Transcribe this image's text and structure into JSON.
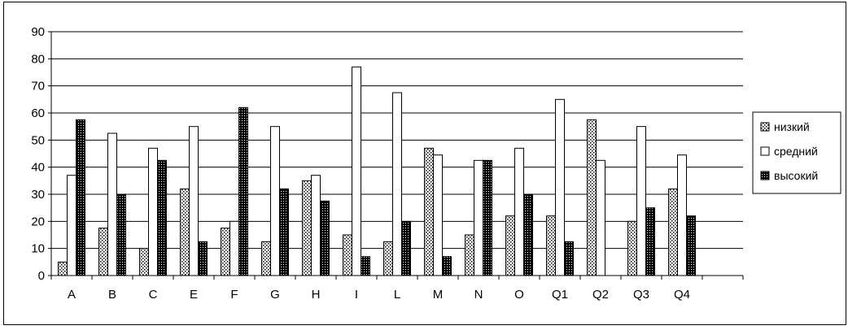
{
  "chart_data": {
    "type": "bar",
    "categories": [
      "A",
      "B",
      "C",
      "E",
      "F",
      "G",
      "H",
      "I",
      "L",
      "M",
      "N",
      "O",
      "Q1",
      "Q2",
      "Q3",
      "Q4"
    ],
    "series": [
      {
        "name": "низкий",
        "pattern": "dots",
        "values": [
          5,
          17.5,
          10,
          32,
          17.5,
          12.5,
          35,
          15,
          12.5,
          47,
          15,
          22,
          22,
          57.5,
          20,
          32
        ]
      },
      {
        "name": "средний",
        "pattern": "white",
        "values": [
          37,
          52.5,
          47,
          55,
          20,
          55,
          37,
          77,
          67.5,
          44.5,
          42.5,
          47,
          65,
          42.5,
          55,
          44.5
        ]
      },
      {
        "name": "высокий",
        "pattern": "dark",
        "values": [
          57.5,
          30,
          42.5,
          12.5,
          62,
          32,
          27.5,
          7,
          20,
          7,
          42.5,
          30,
          12.5,
          0,
          25,
          22
        ]
      }
    ],
    "title": "",
    "xlabel": "",
    "ylabel": "",
    "ylim": [
      0,
      90
    ],
    "yticks": [
      0,
      10,
      20,
      30,
      40,
      50,
      60,
      70,
      80,
      90
    ],
    "grid": true,
    "legend_position": "right",
    "colors": {
      "border": "#000000",
      "grid": "#000000",
      "bar_fill_white": "#ffffff",
      "pattern_dark": "#000000"
    }
  }
}
